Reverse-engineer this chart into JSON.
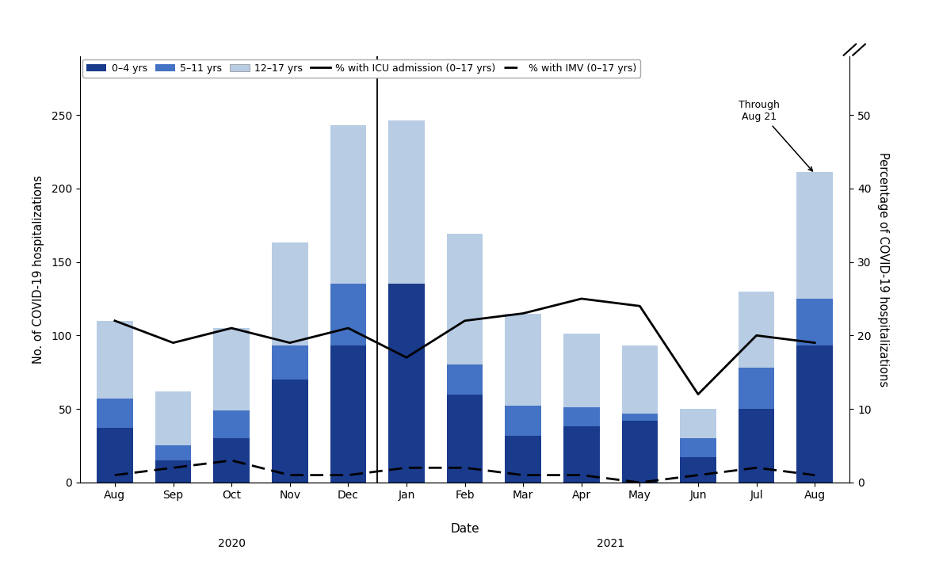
{
  "months": [
    "Aug",
    "Sep",
    "Oct",
    "Nov",
    "Dec",
    "Jan",
    "Feb",
    "Mar",
    "Apr",
    "May",
    "Jun",
    "Jul",
    "Aug"
  ],
  "bar_0_4": [
    37,
    15,
    30,
    70,
    93,
    135,
    60,
    32,
    38,
    42,
    17,
    50,
    93
  ],
  "bar_5_11": [
    20,
    10,
    19,
    23,
    42,
    0,
    20,
    20,
    13,
    5,
    13,
    28,
    32
  ],
  "bar_12_17": [
    53,
    37,
    56,
    70,
    108,
    111,
    89,
    63,
    50,
    46,
    20,
    52,
    86
  ],
  "icu_pct": [
    22,
    19,
    21,
    19,
    21,
    17,
    22,
    23,
    25,
    24,
    12,
    20,
    19
  ],
  "imv_pct": [
    1,
    2,
    3,
    1,
    1,
    2,
    2,
    1,
    1,
    0,
    1,
    2,
    1
  ],
  "color_0_4": "#1a3a8c",
  "color_5_11": "#4472c4",
  "color_12_17": "#b8cce4",
  "ylabel_left": "No. of COVID-19 hospitalizations",
  "ylabel_right": "Percentage of COVID-19 hospitalizations",
  "xlabel": "Date",
  "ylim_left": [
    0,
    290
  ],
  "ylim_right": [
    0,
    58
  ],
  "yticks_left": [
    0,
    50,
    100,
    150,
    200,
    250
  ],
  "yticks_right": [
    0,
    10,
    20,
    30,
    40,
    50
  ],
  "yticklabels_left": [
    "0",
    "50",
    "100",
    "150",
    "200",
    "250"
  ],
  "yticklabels_right": [
    "0",
    "10",
    "20",
    "30",
    "40",
    "50"
  ]
}
